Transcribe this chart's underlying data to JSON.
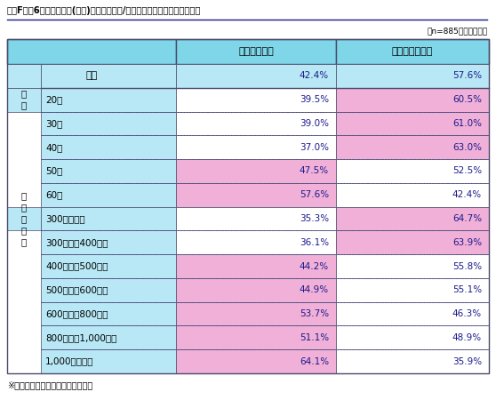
{
  "title": "図表F　第6回「隣の芝生(企業)は青い」調査/自身の仕事・勤務先への満足度",
  "subtitle": "（n=885／複数回答）",
  "note": "※背景色付きは、全体を超える回答",
  "header_col1": "満足している",
  "header_col2": "満足していない",
  "rows": [
    {
      "group": "",
      "label": "全体",
      "val1": "42.4%",
      "val2": "57.6%",
      "highlight1": false,
      "highlight2": false,
      "is_total": true
    },
    {
      "group": "世代",
      "label": "20代",
      "val1": "39.5%",
      "val2": "60.5%",
      "highlight1": false,
      "highlight2": true
    },
    {
      "group": "",
      "label": "30代",
      "val1": "39.0%",
      "val2": "61.0%",
      "highlight1": false,
      "highlight2": true
    },
    {
      "group": "",
      "label": "40代",
      "val1": "37.0%",
      "val2": "63.0%",
      "highlight1": false,
      "highlight2": true
    },
    {
      "group": "",
      "label": "50代",
      "val1": "47.5%",
      "val2": "52.5%",
      "highlight1": true,
      "highlight2": false
    },
    {
      "group": "",
      "label": "60代",
      "val1": "57.6%",
      "val2": "42.4%",
      "highlight1": true,
      "highlight2": false
    },
    {
      "group": "自分の年収",
      "label": "300万円未満",
      "val1": "35.3%",
      "val2": "64.7%",
      "highlight1": false,
      "highlight2": true
    },
    {
      "group": "",
      "label": "300万円～400万円",
      "val1": "36.1%",
      "val2": "63.9%",
      "highlight1": false,
      "highlight2": true
    },
    {
      "group": "",
      "label": "400万円～500万円",
      "val1": "44.2%",
      "val2": "55.8%",
      "highlight1": true,
      "highlight2": false
    },
    {
      "group": "",
      "label": "500万円～600万円",
      "val1": "44.9%",
      "val2": "55.1%",
      "highlight1": true,
      "highlight2": false
    },
    {
      "group": "",
      "label": "600万円～800万円",
      "val1": "53.7%",
      "val2": "46.3%",
      "highlight1": true,
      "highlight2": false
    },
    {
      "group": "",
      "label": "800万円～1,000万円",
      "val1": "51.1%",
      "val2": "48.9%",
      "highlight1": true,
      "highlight2": false
    },
    {
      "group": "",
      "label": "1,000万円以上",
      "val1": "64.1%",
      "val2": "35.9%",
      "highlight1": true,
      "highlight2": false
    }
  ],
  "color_header_bg": "#7fd6e8",
  "color_total_bg": "#b8e8f5",
  "color_group_bg": "#b8e8f5",
  "color_data_bg": "#ffffff",
  "color_highlight": "#f0b0d8",
  "color_border_outer": "#4a4a6a",
  "color_border_inner": "#4a4a8a",
  "color_text_value": "#1a1a8a",
  "color_text_label": "#000000",
  "color_title_underline": "#1a1a8a"
}
